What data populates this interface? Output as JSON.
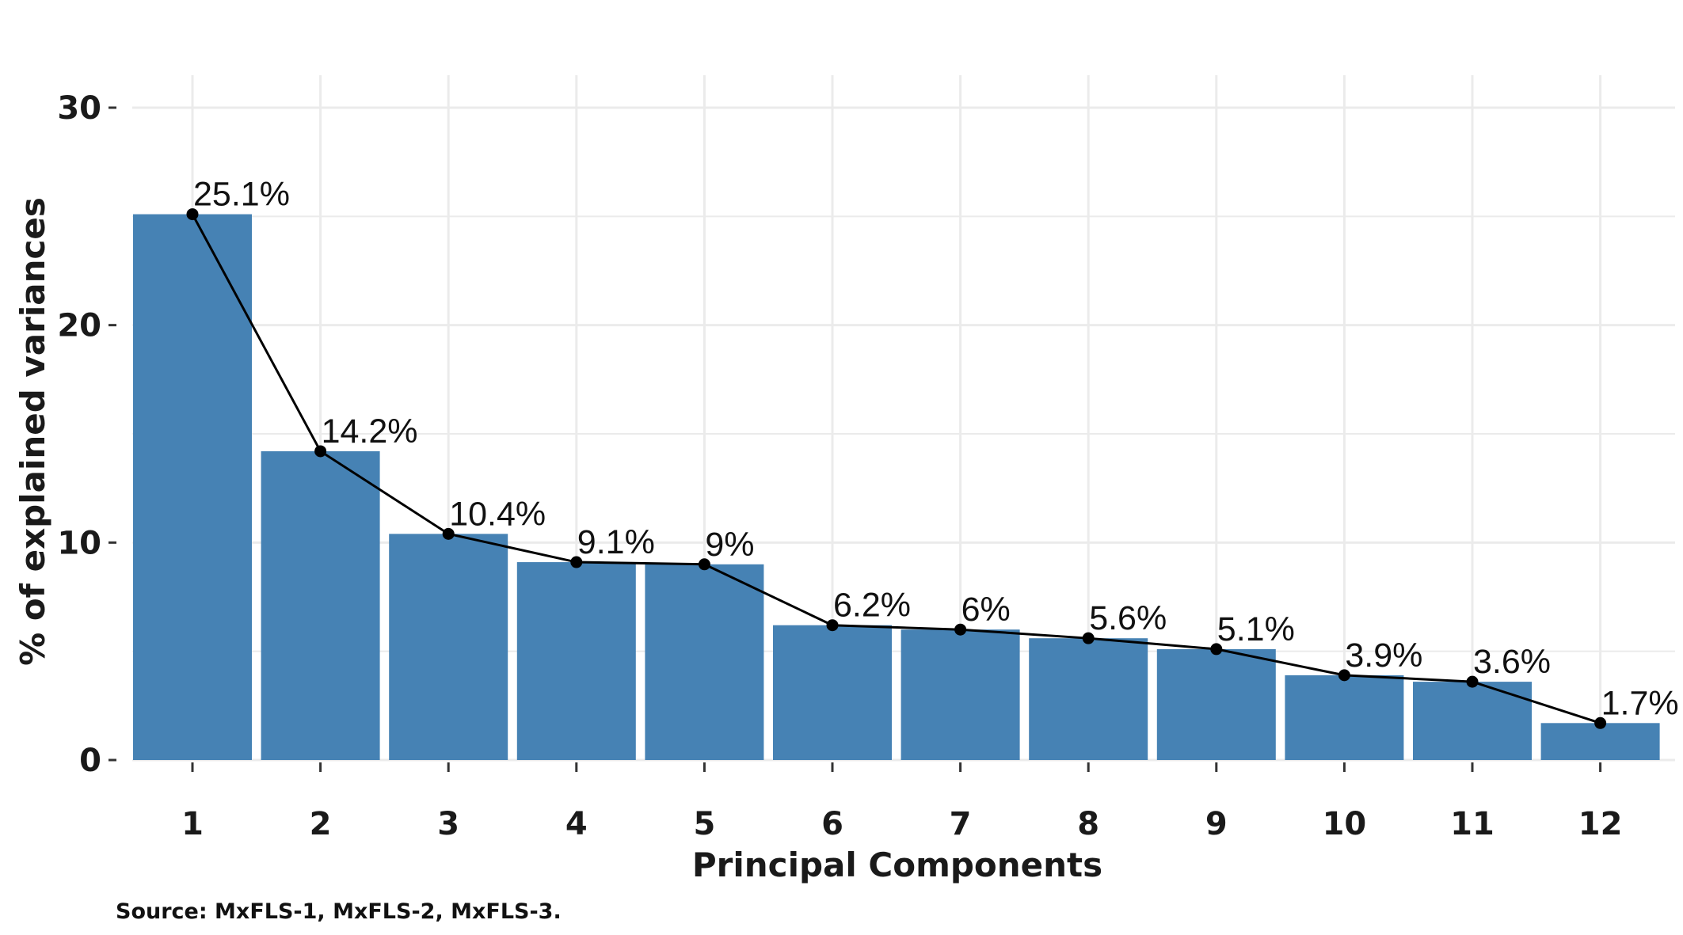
{
  "chart_data": {
    "type": "bar",
    "categories": [
      "1",
      "2",
      "3",
      "4",
      "5",
      "6",
      "7",
      "8",
      "9",
      "10",
      "11",
      "12"
    ],
    "values": [
      25.1,
      14.2,
      10.4,
      9.1,
      9.0,
      6.2,
      6.0,
      5.6,
      5.1,
      3.9,
      3.6,
      1.7
    ],
    "data_labels": [
      "25.1%",
      "14.2%",
      "10.4%",
      "9.1%",
      "9%",
      "6.2%",
      "6%",
      "5.6%",
      "5.1%",
      "3.9%",
      "3.6%",
      "1.7%"
    ],
    "overlay": "line-with-points",
    "xlabel": "Principal Components",
    "ylabel": "% of explained variances",
    "ylim": [
      0,
      30
    ],
    "yticks": [
      0,
      10,
      20,
      30
    ],
    "grid": true,
    "colors": {
      "bar": "#4682b4",
      "line": "#000000",
      "grid": "#ebebeb"
    }
  },
  "source_note": "Source: MxFLS-1, MxFLS-2, MxFLS-3."
}
